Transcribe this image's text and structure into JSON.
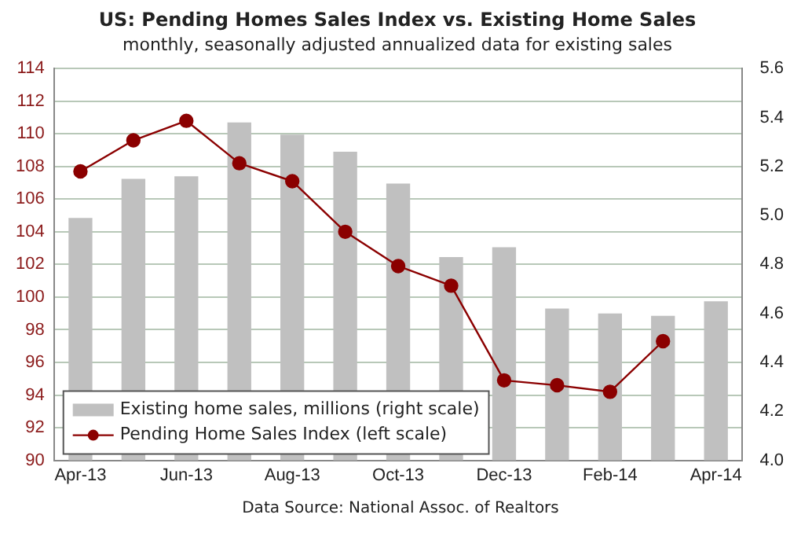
{
  "chart_data": {
    "type": "bar",
    "title": "US: Pending Homes Sales Index vs. Existing Home Sales",
    "subtitle": "monthly, seasonally adjusted annualized data for existing sales",
    "categories": [
      "Apr-13",
      null,
      "Jun-13",
      null,
      "Aug-13",
      null,
      "Oct-13",
      null,
      "Dec-13",
      null,
      "Feb-14",
      null,
      "Apr-14"
    ],
    "series": [
      {
        "name": "Existing home sales, millions (right scale)",
        "axis": "y2",
        "color": "#c0c0c0",
        "values": [
          4.99,
          5.15,
          5.16,
          5.38,
          5.33,
          5.26,
          5.13,
          4.83,
          4.87,
          4.62,
          4.6,
          4.59,
          4.65
        ]
      },
      {
        "name": "Pending Home Sales Index (left scale)",
        "type": "line",
        "axis": "y",
        "color": "#8b0000",
        "values": [
          107.7,
          109.6,
          110.8,
          108.2,
          107.1,
          104.0,
          101.9,
          100.7,
          94.9,
          94.6,
          94.2,
          97.3,
          null
        ],
        "marker": "circle"
      }
    ],
    "ylim": [
      90,
      114
    ],
    "yticks": [
      90,
      92,
      94,
      96,
      98,
      100,
      102,
      104,
      106,
      108,
      110,
      112,
      114
    ],
    "y2lim": [
      4.0,
      5.6
    ],
    "y2ticks": [
      {
        "value": 4.0,
        "label": "4.0"
      },
      {
        "value": 4.2,
        "label": "4.2"
      },
      {
        "value": 4.4,
        "label": "4.4"
      },
      {
        "value": 4.6,
        "label": "4.6"
      },
      {
        "value": 4.8,
        "label": "4.8"
      },
      {
        "value": 5.0,
        "label": "5.0"
      },
      {
        "value": 5.2,
        "label": "5.2"
      },
      {
        "value": 5.4,
        "label": "5.4"
      },
      {
        "value": 5.6,
        "label": "5.6"
      }
    ],
    "grid": "y",
    "legend": "bottom left",
    "line_style": "solid",
    "annotations": [
      "Data Source: National Assoc. of Realtors"
    ]
  }
}
